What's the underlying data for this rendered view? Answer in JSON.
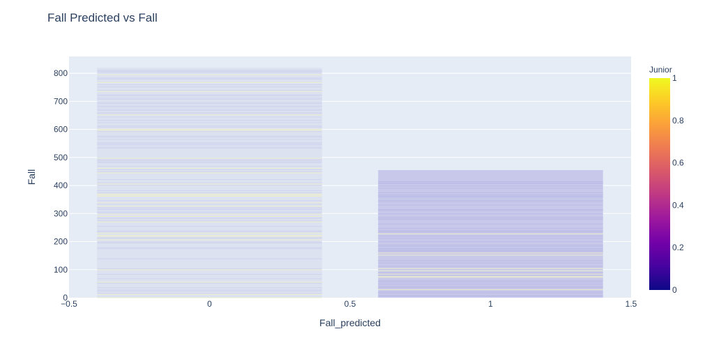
{
  "chart_data": {
    "type": "bar",
    "title": "Fall Predicted vs Fall",
    "xlabel": "Fall_predicted",
    "ylabel": "Fall",
    "x_ticks": [
      "−0.5",
      "0",
      "0.5",
      "1",
      "1.5"
    ],
    "y_ticks": [
      "0",
      "100",
      "200",
      "300",
      "400",
      "500",
      "600",
      "700",
      "800"
    ],
    "xlim": [
      -0.5,
      1.5
    ],
    "ylim": [
      0,
      860
    ],
    "grid": true,
    "categories": [
      0,
      1
    ],
    "series": [
      {
        "values": [
          820,
          455
        ]
      }
    ],
    "bar_width": 0.8,
    "colorbar": {
      "title": "Junior",
      "ticks": [
        "0",
        "0.2",
        "0.4",
        "0.6",
        "0.8",
        "1"
      ],
      "range": [
        0,
        1
      ],
      "colors": [
        "#0d0887",
        "#46039f",
        "#7201a8",
        "#9c179e",
        "#bd3786",
        "#d8576b",
        "#ed7953",
        "#fb9f3a",
        "#fdca26",
        "#f0f921"
      ]
    },
    "background_color": "#e5ecf6"
  }
}
